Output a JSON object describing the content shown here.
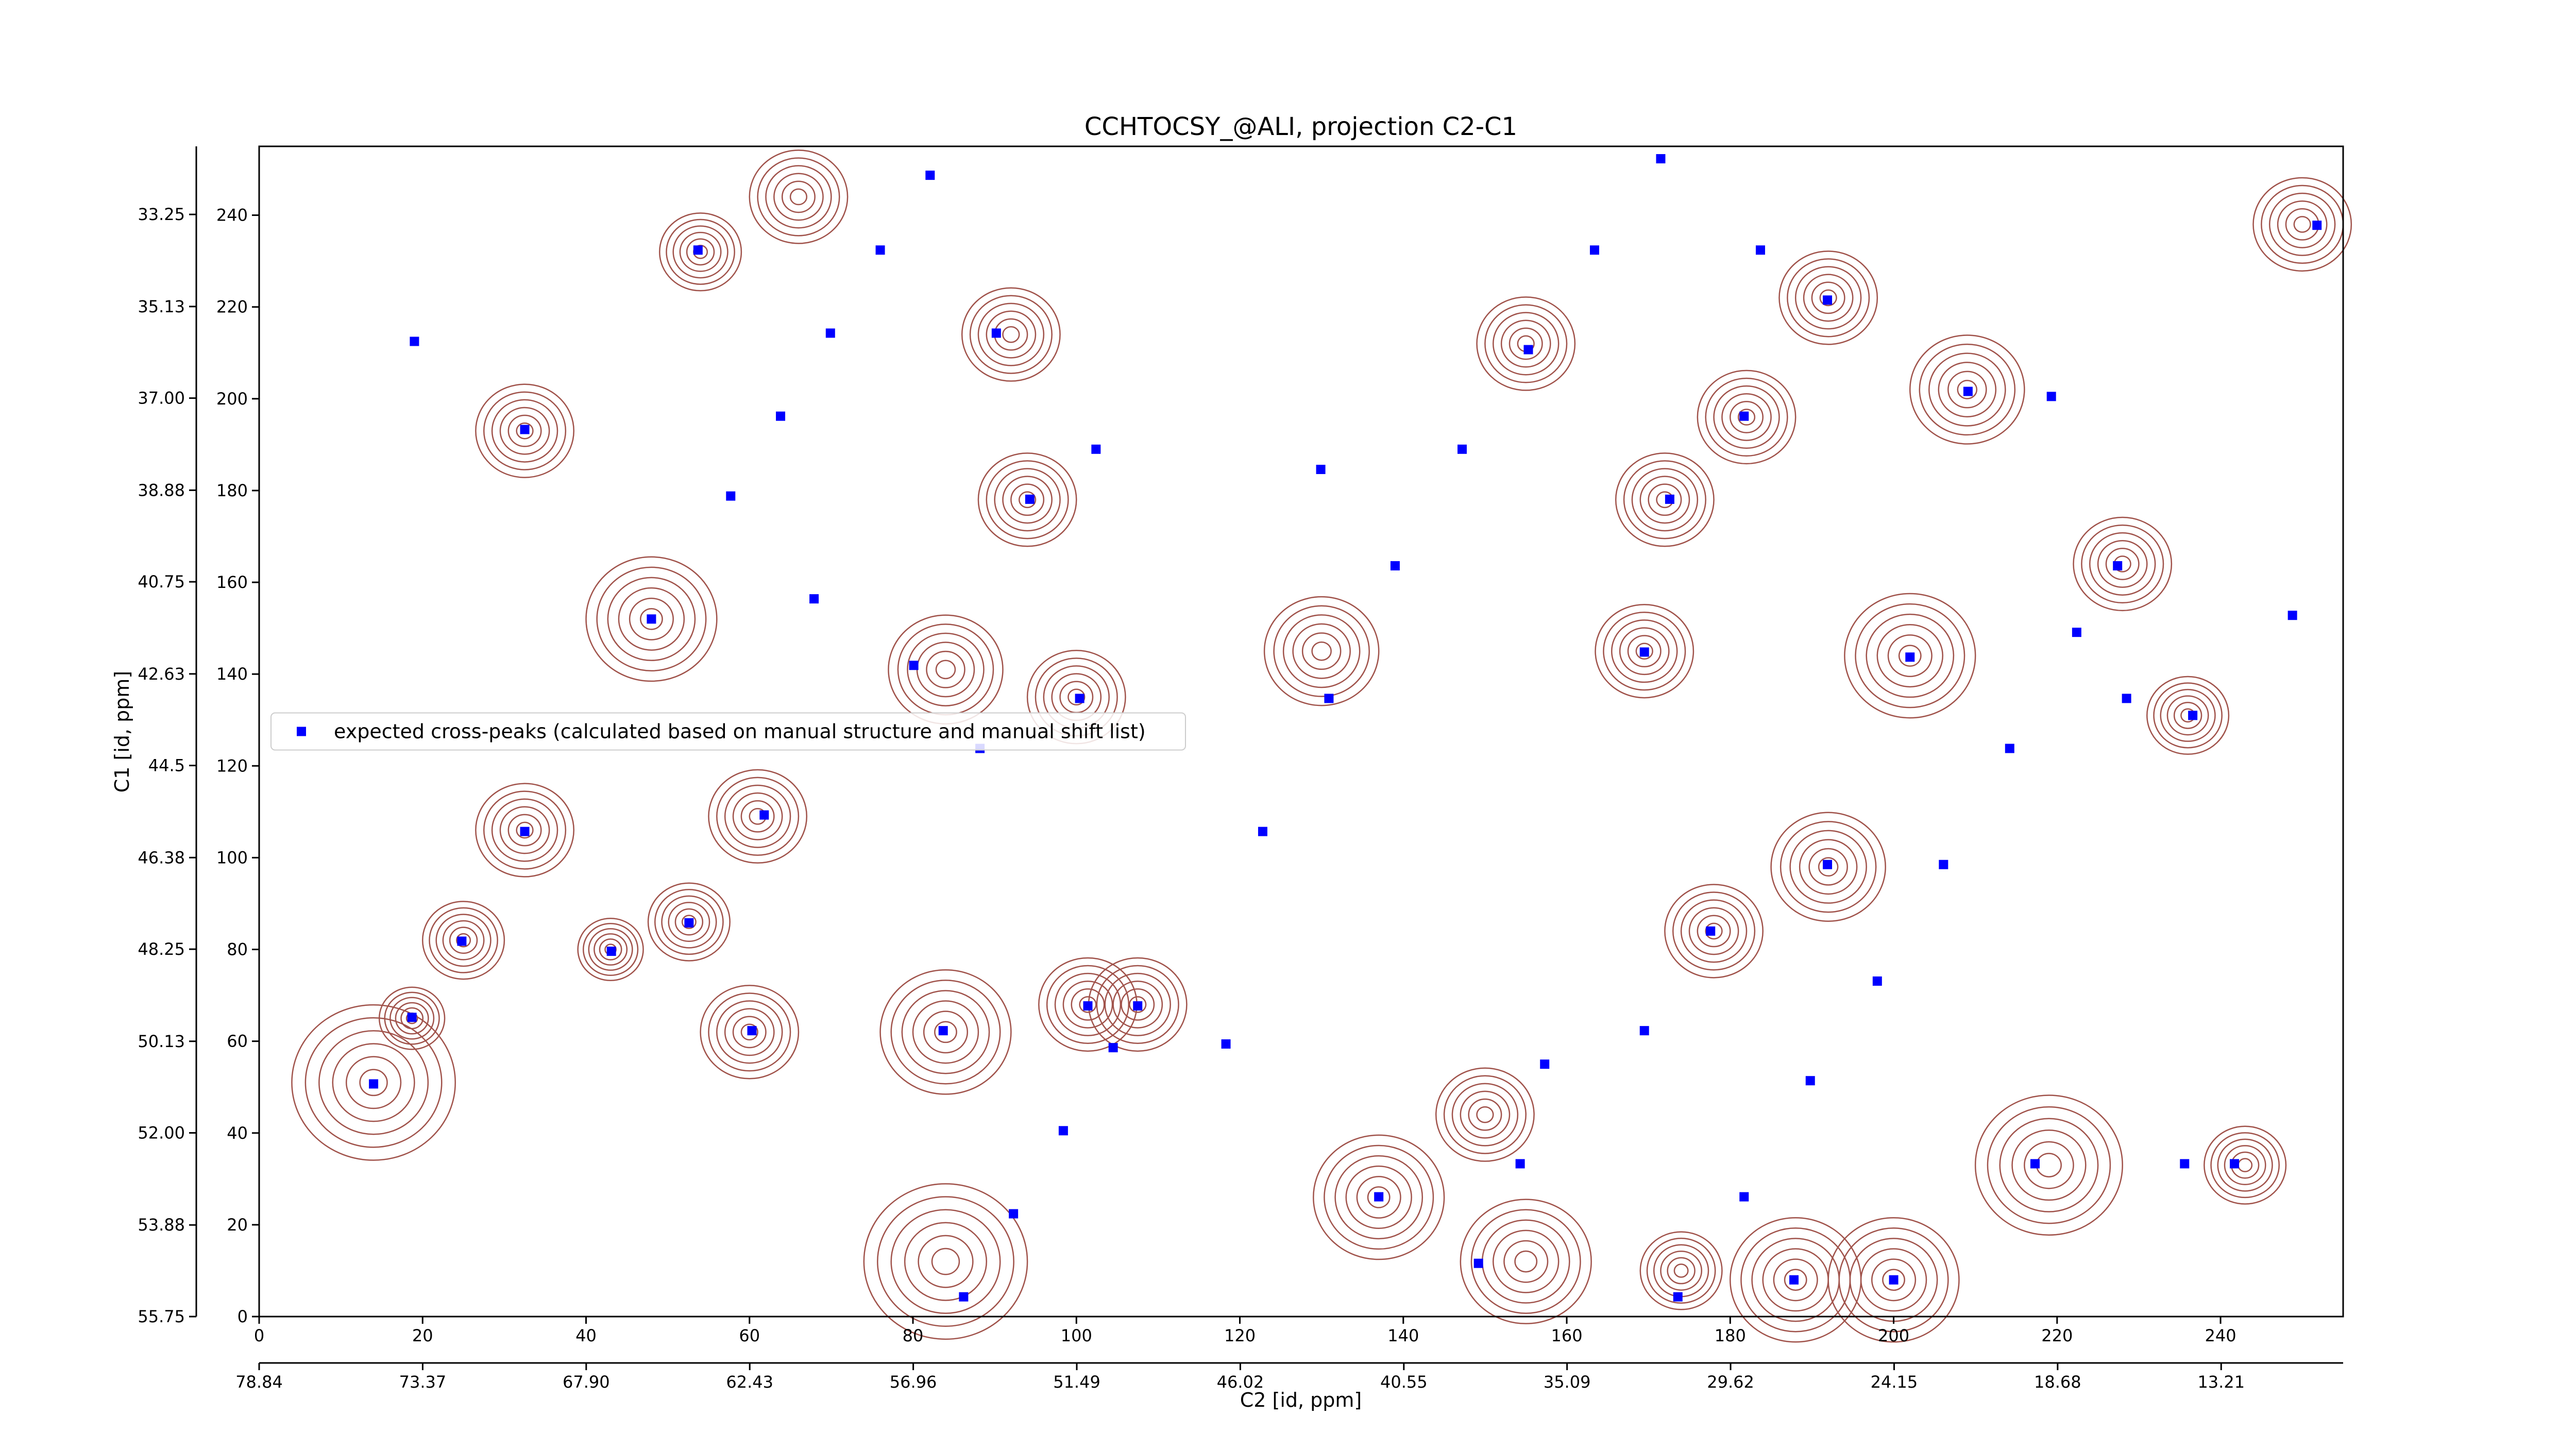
{
  "chart_data": {
    "type": "scatter",
    "title": "CCHTOCSY_@ALI, projection C2-C1",
    "x_label": "C2 [id, ppm]",
    "y_label": "C1 [id, ppm]",
    "xlim": [
      0,
      255
    ],
    "ylim": [
      0,
      255
    ],
    "xticks": [
      0,
      20,
      40,
      60,
      80,
      100,
      120,
      140,
      160,
      180,
      200,
      220,
      240
    ],
    "yticks": [
      0,
      20,
      40,
      60,
      80,
      100,
      120,
      140,
      160,
      180,
      200,
      220,
      240
    ],
    "x2lim": [
      78.84,
      9.13
    ],
    "x2ticks": [
      78.84,
      73.37,
      {
        "value": 67.9,
        "label": "67.90"
      },
      62.43,
      56.96,
      51.49,
      46.02,
      40.55,
      35.09,
      29.62,
      24.15,
      18.68,
      13.21
    ],
    "y2lim": [
      55.75,
      31.86
    ],
    "y2ticks": [
      55.75,
      53.88,
      {
        "value": 52.0,
        "label": "52.00"
      },
      50.13,
      48.25,
      46.38,
      44.5,
      42.63,
      40.75,
      38.88,
      {
        "value": 37.0,
        "label": "37.00"
      },
      35.13,
      33.25
    ],
    "legend_position": "center left",
    "series": [
      {
        "name": "expected cross-peaks (calculated based on manual structure and manual shift list)",
        "color": "#0000ff",
        "x": [
          57.7,
          63.8,
          69.9,
          76.0,
          82.1,
          122.8,
          130.9,
          139.0,
          147.2,
          155.3,
          163.4,
          171.5,
          173.6,
          181.7,
          189.8,
          198.0,
          206.1,
          214.2,
          222.4,
          227.4,
          86.2,
          92.3,
          98.4,
          104.5,
          14.0,
          18.7,
          24.8,
          32.5,
          32.5,
          19.0,
          48.0,
          52.6,
          43.1,
          60.3,
          83.7,
          107.5,
          101.4,
          118.3,
          129.9,
          169.5,
          202.0,
          248.8,
          251.8,
          219.3,
          209.1,
          241.7,
          235.6,
          217.3,
          187.8,
          200.0,
          149.2,
          137.0,
          177.6,
          191.9,
          172.6,
          181.7,
          88.2,
          80.1,
          67.9,
          61.8,
          100.4,
          94.3,
          102.4,
          53.7,
          90.2,
          191.9,
          183.7,
          228.5,
          236.6,
          154.3,
          157.3,
          169.5
        ],
        "values": [
          178.8,
          196.2,
          214.3,
          232.4,
          248.7,
          105.7,
          134.7,
          163.6,
          189.0,
          210.7,
          232.4,
          252.3,
          4.3,
          26.1,
          51.4,
          73.1,
          98.5,
          123.8,
          149.1,
          163.6,
          4.3,
          22.4,
          40.5,
          58.6,
          50.7,
          65.2,
          81.8,
          105.7,
          193.3,
          212.5,
          152.0,
          85.8,
          79.6,
          62.3,
          62.3,
          67.7,
          67.7,
          59.4,
          184.6,
          144.8,
          143.7,
          152.8,
          237.8,
          200.5,
          201.6,
          33.3,
          33.3,
          33.3,
          8.0,
          8.0,
          11.6,
          26.1,
          84.0,
          98.5,
          178.1,
          196.2,
          123.8,
          141.9,
          156.4,
          109.3,
          134.7,
          178.1,
          189.0,
          232.4,
          214.3,
          221.5,
          232.4,
          134.7,
          131.0,
          33.3,
          55.0,
          62.3
        ]
      }
    ],
    "contours": {
      "color": "#a0524a",
      "x": [
        14,
        18.7,
        25,
        32.5,
        32.5,
        48,
        52.6,
        43,
        60,
        84,
        107.5,
        101.4,
        130,
        155,
        228,
        169.5,
        202,
        209,
        219,
        84,
        137,
        188,
        200,
        155,
        174,
        178,
        192,
        92,
        61,
        84,
        100,
        54,
        94,
        172,
        182,
        192,
        66,
        236,
        250,
        243,
        150
      ],
      "y": [
        51,
        65,
        82,
        106,
        193,
        152,
        86,
        80,
        62,
        62,
        68,
        68,
        145,
        212,
        164,
        145,
        144,
        202,
        33,
        12,
        26,
        8,
        8,
        12,
        10,
        84,
        98,
        214,
        109,
        141,
        135,
        232,
        178,
        178,
        196,
        222,
        244,
        131,
        238,
        33,
        44
      ],
      "r": [
        10,
        4,
        5,
        6,
        6,
        8,
        5,
        4,
        6,
        8,
        6,
        6,
        7,
        6,
        6,
        6,
        8,
        7,
        9,
        10,
        8,
        8,
        8,
        8,
        5,
        6,
        7,
        6,
        6,
        7,
        6,
        5,
        6,
        6,
        6,
        6,
        6,
        5,
        6,
        5,
        6
      ]
    }
  }
}
